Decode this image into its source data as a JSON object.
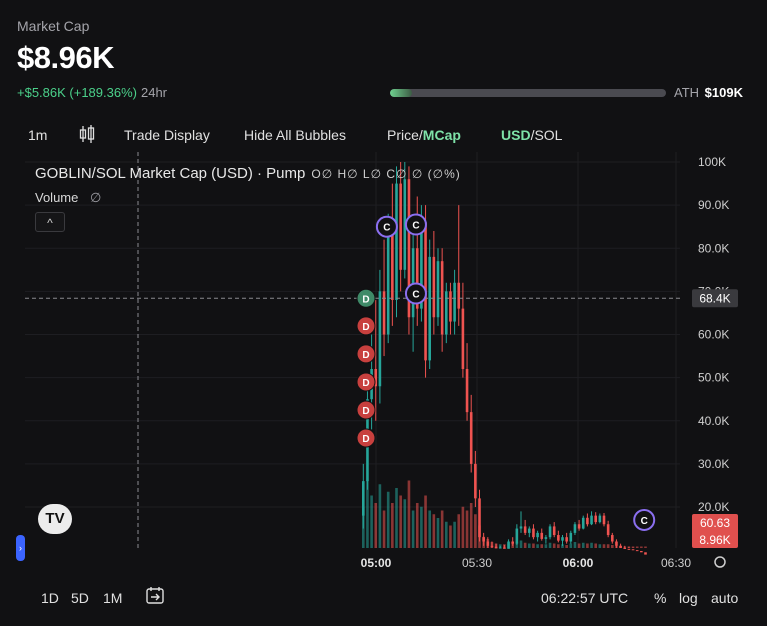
{
  "header": {
    "label": "Market Cap",
    "value": "$8.96K",
    "change": "+$5.86K (+189.36%)",
    "period": "24hr",
    "ath_label": "ATH",
    "ath_value": "$109K",
    "ath_progress": 0.08
  },
  "toolbar": {
    "interval": "1m",
    "candle_icon": "candlestick-icon",
    "trade_display": "Trade Display",
    "hide_bubbles": "Hide All Bubbles",
    "price_label": "Price/",
    "mcap_label": "MCap",
    "usd_label": "USD",
    "sol_label": "/SOL"
  },
  "overlay": {
    "title": "GOBLIN/SOL Market Cap (USD) · Pump",
    "ohlc": "O∅ H∅ L∅ C∅ ∅ (∅%)",
    "volume": "Volume",
    "volume_value": "∅",
    "collapse": "^"
  },
  "price_labels": {
    "crosshair": "68.4K",
    "last_a": "60.63",
    "last_b": "8.96K"
  },
  "bottom": {
    "range_1d": "1D",
    "range_5d": "5D",
    "range_1m": "1M",
    "time": "06:22:57 UTC",
    "percent": "%",
    "log": "log",
    "auto": "auto"
  },
  "colors": {
    "up": "#26a69a",
    "down": "#ef5350",
    "accent": "#7ee2a8"
  },
  "chart_data": {
    "type": "candlestick",
    "y_ticks": [
      "100K",
      "90.0K",
      "80.0K",
      "70.0K",
      "60.0K",
      "50.0K",
      "40.0K",
      "30.0K",
      "20.0K"
    ],
    "x_ticks": [
      "05:00",
      "05:30",
      "06:00",
      "06:30"
    ],
    "ylim": [
      10000,
      100000
    ],
    "markers": [
      {
        "type": "D",
        "kind": "dev-sell",
        "value": 68400,
        "t": 1
      },
      {
        "type": "D",
        "kind": "dev-sell",
        "value": 62000,
        "t": 1
      },
      {
        "type": "D",
        "kind": "dev-sell",
        "value": 55500,
        "t": 1
      },
      {
        "type": "D",
        "kind": "dev-sell",
        "value": 49000,
        "t": 1
      },
      {
        "type": "D",
        "kind": "dev-sell",
        "value": 42500,
        "t": 1
      },
      {
        "type": "D",
        "kind": "dev-sell",
        "value": 36000,
        "t": 1
      },
      {
        "type": "C",
        "kind": "creator",
        "value": 85000,
        "t": 6
      },
      {
        "type": "C",
        "kind": "creator",
        "value": 85500,
        "t": 13
      },
      {
        "type": "C",
        "kind": "creator",
        "value": 69500,
        "t": 13
      },
      {
        "type": "C",
        "kind": "creator",
        "value": 17000,
        "t": 68
      }
    ],
    "candles": [
      {
        "o": 18000,
        "h": 30000,
        "l": 15000,
        "c": 26000,
        "v": 0.55
      },
      {
        "o": 26000,
        "h": 50000,
        "l": 24000,
        "c": 45000,
        "v": 0.9
      },
      {
        "o": 45000,
        "h": 60000,
        "l": 38000,
        "c": 52000,
        "v": 0.7
      },
      {
        "o": 52000,
        "h": 68000,
        "l": 40000,
        "c": 48000,
        "v": 0.6
      },
      {
        "o": 48000,
        "h": 75000,
        "l": 44000,
        "c": 70000,
        "v": 0.85
      },
      {
        "o": 70000,
        "h": 82000,
        "l": 55000,
        "c": 60000,
        "v": 0.5
      },
      {
        "o": 60000,
        "h": 88000,
        "l": 58000,
        "c": 85000,
        "v": 0.75
      },
      {
        "o": 85000,
        "h": 95000,
        "l": 62000,
        "c": 68000,
        "v": 0.6
      },
      {
        "o": 68000,
        "h": 99000,
        "l": 64000,
        "c": 95000,
        "v": 0.8
      },
      {
        "o": 95000,
        "h": 100000,
        "l": 70000,
        "c": 75000,
        "v": 0.7
      },
      {
        "o": 75000,
        "h": 100000,
        "l": 73000,
        "c": 96000,
        "v": 0.65
      },
      {
        "o": 96000,
        "h": 99000,
        "l": 60000,
        "c": 64000,
        "v": 0.9
      },
      {
        "o": 64000,
        "h": 85000,
        "l": 56000,
        "c": 80000,
        "v": 0.5
      },
      {
        "o": 80000,
        "h": 92000,
        "l": 62000,
        "c": 66000,
        "v": 0.6
      },
      {
        "o": 66000,
        "h": 90000,
        "l": 63000,
        "c": 86000,
        "v": 0.55
      },
      {
        "o": 86000,
        "h": 90000,
        "l": 50000,
        "c": 54000,
        "v": 0.7
      },
      {
        "o": 54000,
        "h": 82000,
        "l": 52000,
        "c": 78000,
        "v": 0.5
      },
      {
        "o": 78000,
        "h": 84000,
        "l": 60000,
        "c": 64000,
        "v": 0.45
      },
      {
        "o": 64000,
        "h": 80000,
        "l": 62000,
        "c": 77000,
        "v": 0.4
      },
      {
        "o": 77000,
        "h": 80000,
        "l": 56000,
        "c": 60000,
        "v": 0.5
      },
      {
        "o": 60000,
        "h": 72000,
        "l": 58000,
        "c": 70000,
        "v": 0.35
      },
      {
        "o": 70000,
        "h": 72000,
        "l": 60000,
        "c": 63000,
        "v": 0.3
      },
      {
        "o": 63000,
        "h": 75000,
        "l": 60000,
        "c": 72000,
        "v": 0.35
      },
      {
        "o": 72000,
        "h": 90000,
        "l": 62000,
        "c": 66000,
        "v": 0.45
      },
      {
        "o": 66000,
        "h": 72000,
        "l": 50000,
        "c": 52000,
        "v": 0.55
      },
      {
        "o": 52000,
        "h": 58000,
        "l": 40000,
        "c": 42000,
        "v": 0.5
      },
      {
        "o": 42000,
        "h": 46000,
        "l": 28000,
        "c": 30000,
        "v": 0.6
      },
      {
        "o": 30000,
        "h": 33000,
        "l": 20000,
        "c": 22000,
        "v": 0.45
      },
      {
        "o": 22000,
        "h": 24000,
        "l": 12000,
        "c": 13000,
        "v": 0.3
      },
      {
        "o": 13000,
        "h": 14000,
        "l": 11000,
        "c": 12000,
        "v": 0.15
      },
      {
        "o": 12000,
        "h": 13000,
        "l": 10500,
        "c": 11000,
        "v": 0.12
      },
      {
        "o": 11000,
        "h": 12000,
        "l": 10200,
        "c": 10800,
        "v": 0.08
      },
      {
        "o": 10800,
        "h": 11500,
        "l": 10200,
        "c": 10400,
        "v": 0.06
      },
      {
        "o": 10400,
        "h": 11000,
        "l": 10000,
        "c": 10600,
        "v": 0.05
      },
      {
        "o": 10600,
        "h": 11200,
        "l": 10100,
        "c": 10300,
        "v": 0.05
      },
      {
        "o": 10300,
        "h": 12500,
        "l": 10100,
        "c": 12000,
        "v": 0.06
      },
      {
        "o": 12000,
        "h": 13000,
        "l": 11000,
        "c": 11500,
        "v": 0.07
      },
      {
        "o": 11500,
        "h": 16000,
        "l": 11200,
        "c": 15000,
        "v": 0.08
      },
      {
        "o": 15000,
        "h": 19000,
        "l": 14000,
        "c": 15500,
        "v": 0.1
      },
      {
        "o": 15500,
        "h": 17000,
        "l": 13500,
        "c": 14000,
        "v": 0.07
      },
      {
        "o": 14000,
        "h": 15500,
        "l": 13000,
        "c": 15000,
        "v": 0.06
      },
      {
        "o": 15000,
        "h": 16000,
        "l": 12500,
        "c": 13000,
        "v": 0.06
      },
      {
        "o": 13000,
        "h": 14500,
        "l": 12000,
        "c": 14000,
        "v": 0.05
      },
      {
        "o": 14000,
        "h": 15000,
        "l": 12200,
        "c": 12600,
        "v": 0.05
      },
      {
        "o": 12600,
        "h": 13500,
        "l": 11500,
        "c": 13000,
        "v": 0.05
      },
      {
        "o": 13000,
        "h": 16000,
        "l": 12500,
        "c": 15500,
        "v": 0.07
      },
      {
        "o": 15500,
        "h": 16500,
        "l": 13000,
        "c": 13500,
        "v": 0.06
      },
      {
        "o": 13500,
        "h": 14500,
        "l": 11800,
        "c": 12200,
        "v": 0.05
      },
      {
        "o": 12200,
        "h": 13500,
        "l": 11000,
        "c": 13000,
        "v": 0.05
      },
      {
        "o": 13000,
        "h": 14000,
        "l": 11500,
        "c": 12000,
        "v": 0.04
      },
      {
        "o": 12000,
        "h": 14500,
        "l": 11500,
        "c": 14000,
        "v": 0.06
      },
      {
        "o": 14000,
        "h": 16500,
        "l": 13500,
        "c": 16000,
        "v": 0.08
      },
      {
        "o": 16000,
        "h": 17000,
        "l": 14500,
        "c": 15000,
        "v": 0.06
      },
      {
        "o": 15000,
        "h": 18000,
        "l": 14800,
        "c": 17500,
        "v": 0.07
      },
      {
        "o": 17500,
        "h": 18500,
        "l": 15500,
        "c": 16000,
        "v": 0.06
      },
      {
        "o": 16000,
        "h": 19000,
        "l": 15800,
        "c": 18000,
        "v": 0.07
      },
      {
        "o": 18000,
        "h": 18800,
        "l": 16000,
        "c": 16500,
        "v": 0.06
      },
      {
        "o": 16500,
        "h": 18500,
        "l": 16200,
        "c": 18000,
        "v": 0.05
      },
      {
        "o": 18000,
        "h": 18600,
        "l": 15500,
        "c": 16000,
        "v": 0.05
      },
      {
        "o": 16000,
        "h": 16800,
        "l": 13000,
        "c": 13500,
        "v": 0.05
      },
      {
        "o": 13500,
        "h": 14000,
        "l": 11500,
        "c": 12000,
        "v": 0.04
      },
      {
        "o": 12000,
        "h": 12500,
        "l": 10500,
        "c": 11000,
        "v": 0.03
      },
      {
        "o": 11000,
        "h": 11500,
        "l": 10200,
        "c": 10500,
        "v": 0.03
      },
      {
        "o": 10500,
        "h": 11000,
        "l": 10000,
        "c": 10300,
        "v": 0.02
      },
      {
        "o": 10300,
        "h": 10800,
        "l": 10000,
        "c": 10200,
        "v": 0.02
      },
      {
        "o": 10200,
        "h": 10600,
        "l": 9800,
        "c": 10000,
        "v": 0.02
      },
      {
        "o": 10000,
        "h": 10400,
        "l": 9600,
        "c": 9800,
        "v": 0.02
      },
      {
        "o": 9800,
        "h": 10200,
        "l": 9300,
        "c": 9500,
        "v": 0.02
      },
      {
        "o": 9500,
        "h": 9900,
        "l": 8900,
        "c": 8960,
        "v": 0.02
      }
    ]
  }
}
